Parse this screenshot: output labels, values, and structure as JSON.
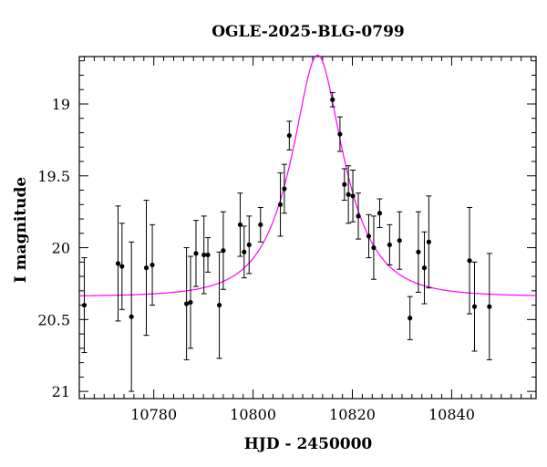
{
  "chart_data": {
    "type": "scatter",
    "title": "OGLE-2025-BLG-0799",
    "xlabel": "HJD - 2450000",
    "ylabel": "I magnitude",
    "xlim": [
      10765,
      10857
    ],
    "ylim": [
      21.05,
      18.67
    ],
    "y_inverted": true,
    "x_ticks": [
      10780,
      10800,
      10820,
      10840
    ],
    "y_ticks": [
      19,
      19.5,
      20,
      20.5,
      21
    ],
    "x_tick_labels": [
      "10780",
      "10800",
      "10820",
      "10840"
    ],
    "y_tick_labels": [
      "19",
      "19.5",
      "20",
      "20.5",
      "21"
    ],
    "x_minor_step": 2,
    "y_minor_step": 0.1,
    "grid": false,
    "colors": {
      "points": "#000000",
      "model": "#ff00ff"
    },
    "model": {
      "type": "paczynski",
      "t0": 10813.0,
      "u0": 0.45,
      "tE": 9.5,
      "baseline_mag": 20.34,
      "peak_mag": 18.66
    },
    "series": [
      {
        "marker": "filled-circle",
        "errorbars": true,
        "points": [
          {
            "x": 10766.0,
            "y": 20.4,
            "err": 0.33
          },
          {
            "x": 10772.8,
            "y": 20.11,
            "err": 0.4
          },
          {
            "x": 10773.6,
            "y": 20.13,
            "err": 0.3
          },
          {
            "x": 10775.5,
            "y": 20.48,
            "err": 0.52
          },
          {
            "x": 10778.5,
            "y": 20.14,
            "err": 0.47
          },
          {
            "x": 10779.7,
            "y": 20.12,
            "err": 0.28
          },
          {
            "x": 10786.6,
            "y": 20.39,
            "err": 0.39
          },
          {
            "x": 10787.4,
            "y": 20.38,
            "err": 0.32
          },
          {
            "x": 10788.5,
            "y": 20.04,
            "err": 0.23
          },
          {
            "x": 10790.1,
            "y": 20.05,
            "err": 0.27
          },
          {
            "x": 10790.9,
            "y": 20.05,
            "err": 0.12
          },
          {
            "x": 10793.2,
            "y": 20.4,
            "err": 0.37
          },
          {
            "x": 10794.0,
            "y": 20.02,
            "err": 0.27
          },
          {
            "x": 10797.4,
            "y": 19.84,
            "err": 0.22
          },
          {
            "x": 10798.2,
            "y": 20.03,
            "err": 0.18
          },
          {
            "x": 10799.2,
            "y": 19.98,
            "err": 0.2
          },
          {
            "x": 10801.5,
            "y": 19.84,
            "err": 0.12
          },
          {
            "x": 10805.5,
            "y": 19.7,
            "err": 0.22
          },
          {
            "x": 10806.3,
            "y": 19.59,
            "err": 0.17
          },
          {
            "x": 10807.3,
            "y": 19.22,
            "err": 0.1
          },
          {
            "x": 10816.0,
            "y": 18.97,
            "err": 0.05
          },
          {
            "x": 10817.5,
            "y": 19.21,
            "err": 0.12
          },
          {
            "x": 10818.4,
            "y": 19.56,
            "err": 0.11
          },
          {
            "x": 10819.2,
            "y": 19.63,
            "err": 0.2
          },
          {
            "x": 10820.1,
            "y": 19.64,
            "err": 0.18
          },
          {
            "x": 10821.2,
            "y": 19.78,
            "err": 0.16
          },
          {
            "x": 10823.3,
            "y": 19.92,
            "err": 0.15
          },
          {
            "x": 10824.3,
            "y": 20.0,
            "err": 0.22
          },
          {
            "x": 10825.5,
            "y": 19.76,
            "err": 0.1
          },
          {
            "x": 10827.5,
            "y": 19.98,
            "err": 0.14
          },
          {
            "x": 10829.5,
            "y": 19.95,
            "err": 0.2
          },
          {
            "x": 10831.6,
            "y": 20.49,
            "err": 0.15
          },
          {
            "x": 10833.3,
            "y": 20.03,
            "err": 0.28
          },
          {
            "x": 10834.5,
            "y": 20.14,
            "err": 0.25
          },
          {
            "x": 10835.4,
            "y": 19.96,
            "err": 0.32
          },
          {
            "x": 10843.6,
            "y": 20.09,
            "err": 0.37
          },
          {
            "x": 10844.6,
            "y": 20.41,
            "err": 0.31
          },
          {
            "x": 10847.6,
            "y": 20.41,
            "err": 0.37
          }
        ]
      }
    ]
  }
}
